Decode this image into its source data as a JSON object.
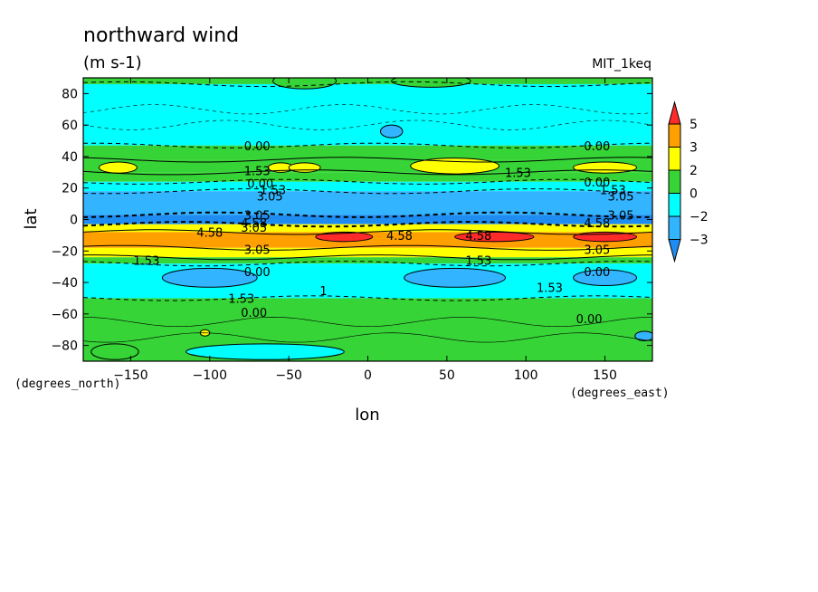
{
  "chart_data": {
    "type": "heatmap",
    "title": "northward wind",
    "units": "(m s-1)",
    "dataset": "MIT_1keq",
    "xlabel": "lon",
    "ylabel": "lat",
    "x_units_note": "(degrees_east)",
    "y_units_note": "(degrees_north)",
    "xlim": [
      -180,
      180
    ],
    "ylim": [
      -90,
      90
    ],
    "x_ticks": [
      -150,
      -100,
      -50,
      0,
      50,
      100,
      150
    ],
    "y_ticks": [
      80,
      60,
      40,
      20,
      0,
      -20,
      -40,
      -60,
      -80
    ],
    "colorbar": {
      "levels": [
        -3,
        -2,
        0,
        2,
        3,
        5
      ],
      "colors": [
        "#1e8cf0",
        "#32b4ff",
        "#00ffff",
        "#36d436",
        "#ffff00",
        "#ffa000",
        "#ff2a2a"
      ]
    },
    "zonal_bands": [
      {
        "lat": [
          86,
          90
        ],
        "value": 0.5
      },
      {
        "lat": [
          47,
          86
        ],
        "value": -1.0
      },
      {
        "lat": [
          38,
          47
        ],
        "value": 1.0
      },
      {
        "lat": [
          30,
          38
        ],
        "value": 1.6
      },
      {
        "lat": [
          24,
          30
        ],
        "value": 1.0
      },
      {
        "lat": [
          18,
          24
        ],
        "value": -1.0
      },
      {
        "lat": [
          3,
          18
        ],
        "value": -2.5
      },
      {
        "lat": [
          -3,
          3
        ],
        "value": -3.5
      },
      {
        "lat": [
          -8,
          -3
        ],
        "value": 2.5
      },
      {
        "lat": [
          -18,
          -8
        ],
        "value": 3.5
      },
      {
        "lat": [
          -24,
          -18
        ],
        "value": 2.5
      },
      {
        "lat": [
          -28,
          -24
        ],
        "value": 1.0
      },
      {
        "lat": [
          -50,
          -28
        ],
        "value": -1.0
      },
      {
        "lat": [
          -90,
          -50
        ],
        "value": 0.5
      }
    ],
    "blobs": [
      {
        "lon": -158,
        "lat": 33,
        "dlon": 12,
        "dlat": 3.5,
        "value": 2.5
      },
      {
        "lon": -55,
        "lat": 33,
        "dlon": 8,
        "dlat": 3,
        "value": 2.5
      },
      {
        "lon": -40,
        "lat": 33,
        "dlon": 10,
        "dlat": 3,
        "value": 2.5
      },
      {
        "lon": 55,
        "lat": 34,
        "dlon": 28,
        "dlat": 5,
        "value": 2.5
      },
      {
        "lon": 150,
        "lat": 33,
        "dlon": 20,
        "dlat": 3.5,
        "value": 2.5
      },
      {
        "lon": 15,
        "lat": 56,
        "dlon": 7,
        "dlat": 4,
        "value": -2.5
      },
      {
        "lon": -100,
        "lat": -37,
        "dlon": 30,
        "dlat": 6,
        "value": -2.5
      },
      {
        "lon": 55,
        "lat": -37,
        "dlon": 32,
        "dlat": 6,
        "value": -2.5
      },
      {
        "lon": 150,
        "lat": -37,
        "dlon": 20,
        "dlat": 5,
        "value": -2.5
      },
      {
        "lon": -15,
        "lat": -11,
        "dlon": 18,
        "dlat": 3,
        "value": 5.5
      },
      {
        "lon": 80,
        "lat": -11,
        "dlon": 25,
        "dlat": 3,
        "value": 5.5
      },
      {
        "lon": 150,
        "lat": -11,
        "dlon": 20,
        "dlat": 3,
        "value": 5.5
      },
      {
        "lon": -160,
        "lat": -84,
        "dlon": 15,
        "dlat": 5,
        "value": 0.5
      },
      {
        "lon": -65,
        "lat": -84,
        "dlon": 50,
        "dlat": 5,
        "value": -1.0
      },
      {
        "lon": -103,
        "lat": -72,
        "dlon": 3,
        "dlat": 2,
        "value": 2.5
      },
      {
        "lon": 175,
        "lat": -74,
        "dlon": 6,
        "dlat": 3,
        "value": -2.5
      },
      {
        "lon": -40,
        "lat": 88,
        "dlon": 20,
        "dlat": 5,
        "value": 0.5
      },
      {
        "lon": 40,
        "lat": 88,
        "dlon": 25,
        "dlat": 4,
        "value": 0.5
      }
    ],
    "contour_labels": [
      {
        "lon": -70,
        "lat": 47,
        "text": "0.00"
      },
      {
        "lon": -70,
        "lat": 31,
        "text": "1.53"
      },
      {
        "lon": -68,
        "lat": 23,
        "text": "0.00"
      },
      {
        "lon": -60,
        "lat": 19,
        "text": "1.53"
      },
      {
        "lon": -62,
        "lat": 15,
        "text": "3.05"
      },
      {
        "lon": -70,
        "lat": 3,
        "text": "3.05"
      },
      {
        "lon": -72,
        "lat": -2,
        "text": "4.58"
      },
      {
        "lon": -72,
        "lat": -5,
        "text": "3.05"
      },
      {
        "lon": -100,
        "lat": -8,
        "text": "4.58"
      },
      {
        "lon": 20,
        "lat": -10,
        "text": "4.58"
      },
      {
        "lon": 70,
        "lat": -10,
        "text": "4.58"
      },
      {
        "lon": 145,
        "lat": -2,
        "text": "4.58"
      },
      {
        "lon": 160,
        "lat": 3,
        "text": "3.05"
      },
      {
        "lon": -70,
        "lat": -19,
        "text": "3.05"
      },
      {
        "lon": 145,
        "lat": -19,
        "text": "3.05"
      },
      {
        "lon": -140,
        "lat": -26,
        "text": "1.53"
      },
      {
        "lon": 70,
        "lat": -26,
        "text": "1.53"
      },
      {
        "lon": -70,
        "lat": -33,
        "text": "0.00"
      },
      {
        "lon": 145,
        "lat": -33,
        "text": "0.00"
      },
      {
        "lon": -80,
        "lat": -50,
        "text": "1.53"
      },
      {
        "lon": 115,
        "lat": -43,
        "text": "1.53"
      },
      {
        "lon": -72,
        "lat": -59,
        "text": "0.00"
      },
      {
        "lon": 140,
        "lat": -63,
        "text": "0.00"
      },
      {
        "lon": 145,
        "lat": 47,
        "text": "0.00"
      },
      {
        "lon": 95,
        "lat": 30,
        "text": "1.53"
      },
      {
        "lon": 145,
        "lat": 24,
        "text": "0.00"
      },
      {
        "lon": 155,
        "lat": 19,
        "text": "1.53"
      },
      {
        "lon": 160,
        "lat": 15,
        "text": "3.05"
      },
      {
        "lon": -28,
        "lat": -45,
        "text": "1"
      }
    ]
  }
}
